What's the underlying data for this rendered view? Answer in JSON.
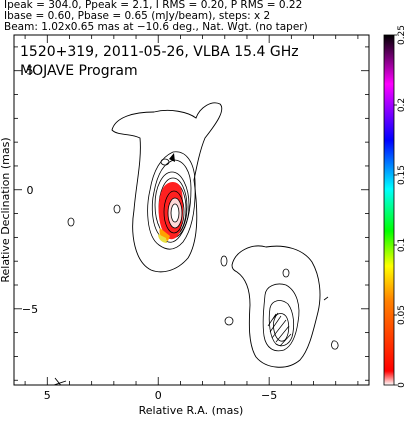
{
  "header": {
    "line1": "Ipeak = 304.0, Ppeak = 2.1, I RMS = 0.20, P RMS = 0.22",
    "line2": "Ibase = 0.60, Pbase = 0.65 (mJy/beam), steps: x 2",
    "line3": "Beam: 1.02x0.65 mas at −10.6 deg., Nat. Wgt. (no taper)"
  },
  "chart_data": {
    "type": "contour",
    "title": "1520+319, 2011-05-26, VLBA 15.4 GHz",
    "subtitle": "MOJAVE Program",
    "xlabel": "Relative R.A. (mas)",
    "ylabel": "Relative Declination (mas)",
    "xlim": [
      6.5,
      -9.5
    ],
    "ylim": [
      -8.2,
      6.5
    ],
    "xticks": [
      5,
      0,
      -5
    ],
    "xtick_labels": [
      "5",
      "0",
      "−5"
    ],
    "yticks": [
      5,
      0,
      -5
    ],
    "ytick_labels": [
      "5",
      "0",
      "−5"
    ],
    "colorbar": {
      "range": [
        0,
        0.25
      ],
      "ticks": [
        0,
        0.05,
        0.1,
        0.15,
        0.2,
        0.25
      ],
      "tick_labels": [
        "0",
        "0.05",
        "0.1",
        "0.15",
        "0.2",
        "0.25"
      ],
      "colors": [
        "#ffffff",
        "#ff0000",
        "#ff8000",
        "#ffff00",
        "#00ff00",
        "#00ffff",
        "#0000ff",
        "#ff00ff",
        "#000000"
      ]
    },
    "core": {
      "x": 0.0,
      "y": 0.0,
      "peak_jy_per_beam": 0.304
    },
    "jet_component": {
      "x": -5.0,
      "y": -4.8
    },
    "beam": {
      "major_mas": 1.02,
      "minor_mas": 0.65,
      "pa_deg": -10.6
    },
    "contour_base_mjy": 0.6,
    "contour_step_factor": 2
  }
}
